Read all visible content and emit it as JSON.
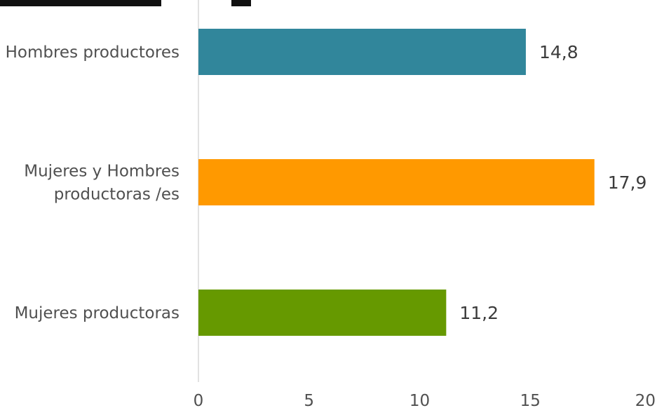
{
  "chart_data": {
    "type": "bar",
    "orientation": "horizontal",
    "categories": [
      "Hombres productores",
      "Mujeres y Hombres productoras /es",
      "Mujeres productoras"
    ],
    "category_lines": [
      [
        "Hombres productores"
      ],
      [
        "Mujeres y Hombres",
        "productoras /es"
      ],
      [
        "Mujeres productoras"
      ]
    ],
    "values": [
      14.8,
      17.9,
      11.2
    ],
    "value_labels": [
      "14,8",
      "17,9",
      "11,2"
    ],
    "colors": [
      "#31869b",
      "#ff9900",
      "#669900"
    ],
    "xlim": [
      0,
      20
    ],
    "xticks": [
      0,
      5,
      10,
      15,
      20
    ],
    "xtick_labels": [
      "0",
      "5",
      "10",
      "15",
      "20"
    ],
    "grid": false,
    "legend": "none"
  }
}
